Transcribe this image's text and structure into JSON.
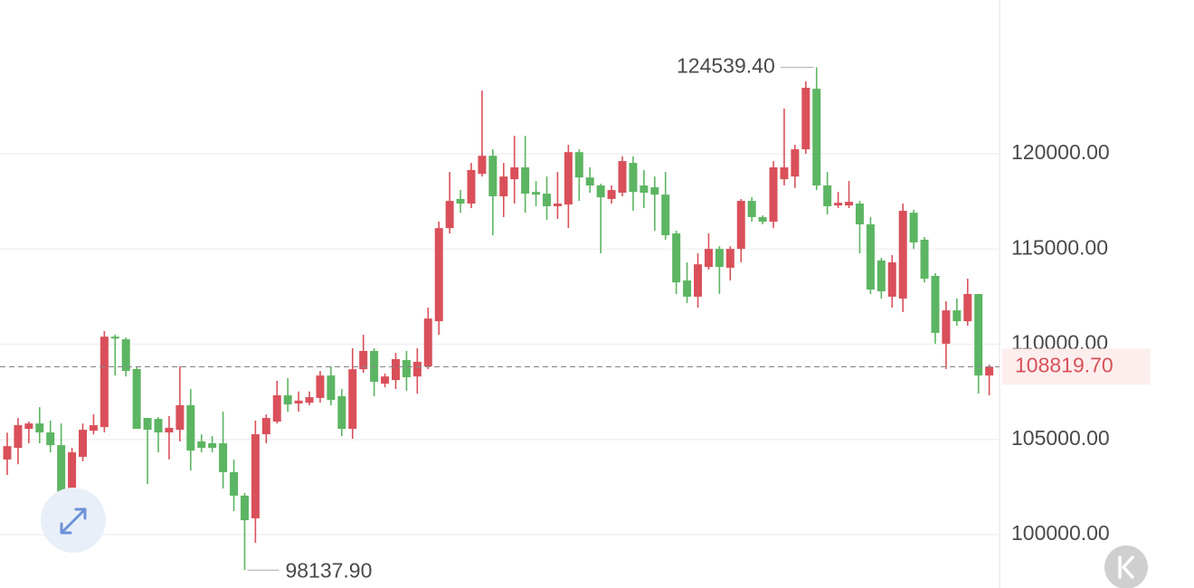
{
  "chart_data": {
    "type": "candlestick",
    "ylim": [
      97200,
      128080
    ],
    "yticks": [
      {
        "value": 100000,
        "label": "100000.00"
      },
      {
        "value": 105000,
        "label": "105000.00"
      },
      {
        "value": 110000,
        "label": "110000.00"
      },
      {
        "value": 115000,
        "label": "115000.00"
      },
      {
        "value": 120000,
        "label": "120000.00"
      }
    ],
    "grid": true,
    "up_color": "#d9505a",
    "down_color": "#5cb562",
    "open": [
      103950,
      104560,
      105560,
      105840,
      105370,
      104700,
      101475,
      104090,
      105460,
      105650,
      110400,
      110260,
      108700,
      106130,
      106080,
      105370,
      105510,
      106800,
      104900,
      104800,
      104800,
      103280,
      102050,
      100860,
      105275,
      105940,
      107320,
      106890,
      106930,
      107180,
      108360,
      107270,
      105560,
      108690,
      109650,
      107930,
      108120,
      109170,
      108310,
      108840,
      111210,
      116100,
      117630,
      117390,
      118950,
      119900,
      117770,
      118670,
      119290,
      118000,
      117910,
      117250,
      117340,
      120090,
      118760,
      118340,
      117630,
      117960,
      119525,
      118340,
      118240,
      117860,
      115820,
      113350,
      112500,
      114060,
      115010,
      114020,
      115010,
      117530,
      116680,
      116440,
      118670,
      118810,
      120240,
      123420,
      118340,
      117290,
      117290,
      117390,
      116300,
      114400,
      112500,
      112400,
      116910,
      115490,
      113590,
      110030,
      111780,
      111210,
      112640,
      108360
    ],
    "high": [
      105360,
      106130,
      105940,
      106700,
      105990,
      105840,
      104560,
      105840,
      106320,
      110690,
      110500,
      110360,
      108790,
      106130,
      106180,
      106230,
      108840,
      107650,
      105270,
      105180,
      106460,
      103940,
      102190,
      105990,
      106320,
      108080,
      108220,
      107520,
      107520,
      108600,
      108840,
      107650,
      109790,
      110500,
      109790,
      108460,
      109550,
      109650,
      109790,
      111925,
      116440,
      119050,
      118100,
      119525,
      123325,
      120240,
      119525,
      120950,
      120950,
      118575,
      118810,
      119050,
      120475,
      120240,
      119290,
      118430,
      118340,
      119860,
      119860,
      119150,
      118810,
      119050,
      115960,
      114300,
      114775,
      115820,
      115150,
      115150,
      117630,
      117720,
      116770,
      119620,
      122375,
      120475,
      123800,
      124539.4,
      119050,
      118000,
      118575,
      117530,
      116680,
      114540,
      114680,
      117390,
      117060,
      115630,
      113730,
      112260,
      112400,
      113445,
      112640,
      108930
    ],
    "low": [
      103140,
      103700,
      104800,
      104800,
      104325,
      100050,
      101000,
      103850,
      105270,
      105370,
      108360,
      108310,
      105560,
      102660,
      104325,
      103960,
      104900,
      103375,
      104325,
      104325,
      102425,
      101240,
      98137.9,
      99575,
      104800,
      105840,
      106460,
      106460,
      106800,
      106940,
      106800,
      105180,
      105040,
      108500,
      107270,
      107740,
      107650,
      107560,
      107410,
      108690,
      110500,
      115820,
      116910,
      117150,
      118810,
      115725,
      116680,
      117390,
      116910,
      117250,
      116530,
      116580,
      116100,
      117530,
      117960,
      114775,
      117390,
      117770,
      117010,
      117150,
      115960,
      115490,
      112640,
      112160,
      111925,
      113920,
      112640,
      113350,
      114300,
      116440,
      116300,
      116100,
      118340,
      118200,
      120000,
      118100,
      116820,
      117150,
      117150,
      114775,
      112640,
      112400,
      111925,
      111690,
      115010,
      113250,
      110030,
      108700,
      110980,
      110980,
      107410,
      107320
    ],
    "close": [
      104650,
      105750,
      105840,
      105370,
      104700,
      101475,
      104325,
      105510,
      105750,
      110400,
      110300,
      108600,
      105560,
      105510,
      105370,
      105610,
      106800,
      104420,
      104560,
      104560,
      103280,
      102050,
      100760,
      105275,
      106130,
      107320,
      106840,
      107040,
      107220,
      108360,
      107080,
      105560,
      108690,
      109650,
      108030,
      108310,
      109220,
      108270,
      109080,
      111350,
      116100,
      117530,
      117390,
      119150,
      119900,
      117770,
      118810,
      119290,
      117910,
      117860,
      117250,
      117390,
      120090,
      118760,
      118340,
      117720,
      118100,
      119620,
      118000,
      117960,
      117860,
      115725,
      113250,
      112500,
      114200,
      115010,
      114060,
      115010,
      117530,
      116680,
      116440,
      119290,
      119290,
      120240,
      123470,
      118340,
      117250,
      117430,
      117480,
      116300,
      112875,
      112780,
      114300,
      117010,
      115350,
      113445,
      110600,
      111780,
      111210,
      112640,
      108360,
      108819.7
    ],
    "max_marker": {
      "value": 124539.4,
      "label": "124539.40"
    },
    "min_marker": {
      "value": 98137.9,
      "label": "98137.90"
    },
    "last_price": {
      "value": 108819.7,
      "label": "108819.70"
    }
  }
}
